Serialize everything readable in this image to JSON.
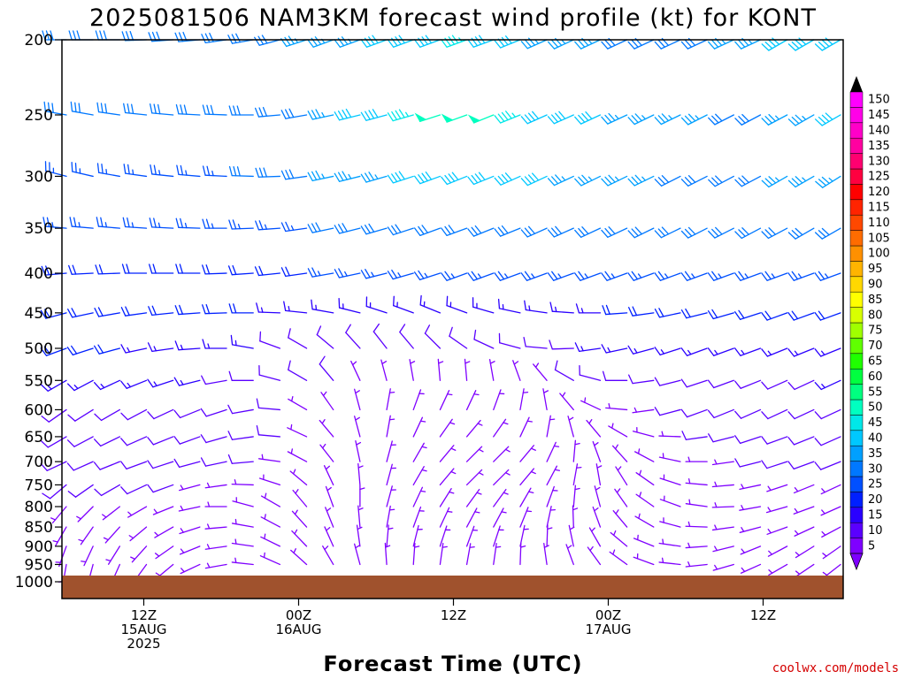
{
  "chart_data": {
    "type": "wind-barb time-height profile",
    "title": "2025081506 NAM3KM forecast wind profile (kt) for KONT",
    "xlabel": "Forecast Time (UTC)",
    "credit": "coolwx.com/models",
    "pressure_levels_hpa": [
      200,
      250,
      300,
      350,
      400,
      450,
      500,
      550,
      600,
      650,
      700,
      750,
      800,
      850,
      900,
      950,
      1000
    ],
    "y_tick_labels": [
      "200",
      "250",
      "300",
      "350",
      "400",
      "450",
      "500",
      "550",
      "600",
      "650",
      "700",
      "750",
      "800",
      "850",
      "900",
      "950",
      "1000"
    ],
    "ylim": [
      200,
      1000
    ],
    "y_scale": "log-pressure",
    "x_range_hours": [
      0,
      60
    ],
    "x_ticks": [
      {
        "hour": 6,
        "lines": [
          "12Z",
          "15AUG",
          "2025"
        ]
      },
      {
        "hour": 18,
        "lines": [
          "00Z",
          "16AUG"
        ]
      },
      {
        "hour": 30,
        "lines": [
          "12Z"
        ]
      },
      {
        "hour": 42,
        "lines": [
          "00Z",
          "17AUG"
        ]
      },
      {
        "hour": 54,
        "lines": [
          "12Z"
        ]
      }
    ],
    "colorbar": {
      "unit": "kt",
      "levels": [
        "5",
        "10",
        "15",
        "20",
        "25",
        "30",
        "35",
        "40",
        "45",
        "50",
        "55",
        "60",
        "65",
        "70",
        "75",
        "80",
        "85",
        "90",
        "95",
        "100",
        "105",
        "110",
        "115",
        "120",
        "125",
        "130",
        "135",
        "140",
        "145",
        "150"
      ],
      "colors": [
        "#7f00ff",
        "#5a00ff",
        "#2a00ff",
        "#0020ff",
        "#0050ff",
        "#0078ff",
        "#00a0ff",
        "#00c8ff",
        "#00e8e8",
        "#00ffc0",
        "#00ff80",
        "#00ff40",
        "#20ff00",
        "#60ff00",
        "#a0ff00",
        "#d8ff00",
        "#ffff00",
        "#ffd800",
        "#ffb400",
        "#ff9000",
        "#ff6c00",
        "#ff4800",
        "#ff2400",
        "#ff0000",
        "#ff0040",
        "#ff0070",
        "#ff00a0",
        "#ff00c8",
        "#ff00e8",
        "#ff00ff"
      ]
    },
    "surface_color": "#a0522d",
    "series": [
      {
        "level": 200,
        "speed_kt": [
          30,
          30,
          30,
          30,
          30,
          30,
          30,
          30,
          32,
          35,
          35,
          35,
          38,
          40,
          42,
          45,
          40,
          38,
          36,
          35,
          34,
          32,
          32,
          32,
          32,
          34,
          36,
          38,
          40,
          40
        ],
        "dir_deg": [
          270,
          270,
          270,
          268,
          266,
          265,
          262,
          260,
          255,
          252,
          250,
          250,
          250,
          250,
          250,
          250,
          250,
          248,
          246,
          245,
          245,
          245,
          245,
          245,
          245,
          245,
          245,
          240,
          240,
          240
        ]
      },
      {
        "level": 250,
        "speed_kt": [
          28,
          28,
          28,
          28,
          28,
          28,
          28,
          28,
          30,
          32,
          35,
          38,
          42,
          45,
          48,
          50,
          48,
          45,
          42,
          40,
          38,
          36,
          35,
          34,
          33,
          32,
          32,
          34,
          36,
          38
        ],
        "dir_deg": [
          280,
          280,
          278,
          276,
          275,
          273,
          272,
          270,
          265,
          260,
          258,
          256,
          255,
          254,
          252,
          250,
          248,
          248,
          246,
          246,
          245,
          245,
          244,
          244,
          243,
          243,
          242,
          242,
          240,
          240
        ]
      },
      {
        "level": 300,
        "speed_kt": [
          25,
          26,
          26,
          26,
          27,
          27,
          27,
          28,
          30,
          32,
          33,
          34,
          36,
          38,
          40,
          42,
          42,
          40,
          38,
          36,
          35,
          34,
          33,
          32,
          32,
          32,
          32,
          33,
          34,
          35
        ],
        "dir_deg": [
          285,
          283,
          280,
          278,
          276,
          275,
          273,
          272,
          268,
          262,
          258,
          256,
          254,
          252,
          250,
          248,
          248,
          246,
          245,
          245,
          244,
          244,
          244,
          243,
          243,
          242,
          242,
          240,
          240,
          238
        ]
      },
      {
        "level": 350,
        "speed_kt": [
          24,
          24,
          24,
          24,
          24,
          25,
          25,
          25,
          26,
          27,
          28,
          29,
          30,
          31,
          31,
          32,
          32,
          32,
          31,
          30,
          30,
          29,
          29,
          28,
          28,
          28,
          28,
          29,
          29,
          30
        ],
        "dir_deg": [
          275,
          275,
          275,
          274,
          273,
          272,
          270,
          268,
          266,
          262,
          258,
          256,
          254,
          252,
          250,
          250,
          248,
          248,
          246,
          246,
          245,
          245,
          244,
          244,
          243,
          243,
          242,
          242,
          240,
          240
        ]
      },
      {
        "level": 400,
        "speed_kt": [
          22,
          22,
          22,
          22,
          22,
          22,
          22,
          22,
          22,
          22,
          23,
          23,
          23,
          24,
          24,
          24,
          24,
          24,
          24,
          24,
          24,
          24,
          24,
          24,
          24,
          24,
          24,
          24,
          24,
          24
        ],
        "dir_deg": [
          265,
          267,
          268,
          270,
          270,
          270,
          268,
          266,
          264,
          262,
          260,
          258,
          256,
          254,
          252,
          250,
          250,
          250,
          250,
          250,
          250,
          250,
          250,
          250,
          250,
          250,
          250,
          250,
          250,
          250
        ]
      },
      {
        "level": 450,
        "speed_kt": [
          20,
          20,
          20,
          20,
          20,
          19,
          18,
          18,
          17,
          16,
          16,
          15,
          15,
          15,
          15,
          15,
          16,
          16,
          16,
          17,
          17,
          18,
          18,
          18,
          19,
          19,
          20,
          20,
          20,
          20
        ],
        "dir_deg": [
          255,
          258,
          260,
          262,
          264,
          266,
          268,
          270,
          272,
          276,
          280,
          284,
          288,
          290,
          292,
          290,
          286,
          282,
          278,
          274,
          270,
          266,
          262,
          258,
          256,
          254,
          252,
          250,
          250,
          250
        ]
      },
      {
        "level": 500,
        "speed_kt": [
          18,
          18,
          18,
          17,
          16,
          15,
          14,
          13,
          12,
          11,
          10,
          10,
          10,
          10,
          10,
          10,
          11,
          11,
          12,
          12,
          13,
          13,
          14,
          14,
          15,
          15,
          16,
          16,
          16,
          16
        ],
        "dir_deg": [
          250,
          252,
          255,
          258,
          262,
          266,
          270,
          280,
          290,
          300,
          310,
          318,
          322,
          320,
          315,
          305,
          295,
          285,
          275,
          268,
          262,
          258,
          255,
          252,
          250,
          250,
          250,
          248,
          248,
          248
        ]
      },
      {
        "level": 550,
        "speed_kt": [
          15,
          15,
          15,
          14,
          14,
          13,
          12,
          11,
          10,
          9,
          8,
          7,
          6,
          6,
          6,
          6,
          6,
          7,
          7,
          8,
          8,
          9,
          9,
          10,
          10,
          11,
          11,
          12,
          12,
          13
        ],
        "dir_deg": [
          240,
          242,
          245,
          248,
          252,
          256,
          260,
          270,
          285,
          300,
          320,
          335,
          345,
          350,
          355,
          355,
          350,
          340,
          320,
          300,
          285,
          270,
          262,
          256,
          252,
          250,
          248,
          246,
          245,
          245
        ]
      },
      {
        "level": 600,
        "speed_kt": [
          12,
          12,
          12,
          12,
          12,
          11,
          10,
          9,
          8,
          7,
          6,
          6,
          5,
          5,
          5,
          5,
          5,
          5,
          5,
          6,
          6,
          7,
          7,
          8,
          8,
          9,
          9,
          10,
          10,
          10
        ],
        "dir_deg": [
          235,
          238,
          240,
          242,
          245,
          248,
          252,
          260,
          275,
          300,
          325,
          345,
          10,
          20,
          25,
          25,
          20,
          10,
          350,
          320,
          295,
          275,
          262,
          255,
          250,
          248,
          246,
          245,
          245,
          245
        ]
      },
      {
        "level": 650,
        "speed_kt": [
          12,
          12,
          12,
          12,
          11,
          11,
          10,
          9,
          8,
          7,
          6,
          5,
          5,
          5,
          5,
          5,
          5,
          5,
          5,
          5,
          6,
          6,
          7,
          7,
          8,
          8,
          9,
          9,
          10,
          10
        ],
        "dir_deg": [
          240,
          242,
          244,
          246,
          248,
          250,
          254,
          262,
          275,
          295,
          320,
          345,
          10,
          25,
          35,
          40,
          35,
          25,
          10,
          345,
          320,
          300,
          285,
          272,
          262,
          256,
          252,
          250,
          248,
          246
        ]
      },
      {
        "level": 700,
        "speed_kt": [
          10,
          10,
          10,
          10,
          10,
          10,
          9,
          8,
          7,
          6,
          5,
          5,
          5,
          5,
          5,
          5,
          5,
          5,
          5,
          5,
          5,
          5,
          6,
          6,
          7,
          7,
          8,
          8,
          8,
          8
        ],
        "dir_deg": [
          245,
          246,
          248,
          250,
          252,
          255,
          258,
          265,
          278,
          298,
          322,
          348,
          15,
          30,
          40,
          45,
          45,
          40,
          25,
          5,
          340,
          318,
          298,
          282,
          270,
          262,
          256,
          252,
          250,
          248
        ]
      },
      {
        "level": 750,
        "speed_kt": [
          8,
          8,
          8,
          8,
          8,
          7,
          7,
          6,
          6,
          5,
          5,
          5,
          5,
          5,
          5,
          5,
          5,
          5,
          5,
          5,
          5,
          5,
          5,
          5,
          6,
          6,
          6,
          7,
          7,
          7
        ],
        "dir_deg": [
          230,
          235,
          240,
          245,
          250,
          255,
          262,
          272,
          288,
          310,
          335,
          355,
          15,
          30,
          40,
          45,
          45,
          40,
          28,
          10,
          350,
          328,
          305,
          288,
          275,
          265,
          258,
          252,
          248,
          245
        ]
      },
      {
        "level": 800,
        "speed_kt": [
          6,
          6,
          6,
          6,
          6,
          6,
          5,
          5,
          5,
          5,
          5,
          5,
          5,
          5,
          5,
          5,
          5,
          5,
          5,
          5,
          5,
          5,
          5,
          5,
          5,
          5,
          5,
          5,
          6,
          6
        ],
        "dir_deg": [
          220,
          225,
          232,
          240,
          248,
          258,
          270,
          285,
          300,
          320,
          340,
          0,
          15,
          25,
          32,
          36,
          36,
          30,
          20,
          5,
          345,
          325,
          305,
          290,
          278,
          268,
          260,
          254,
          250,
          246
        ]
      },
      {
        "level": 850,
        "speed_kt": [
          5,
          5,
          5,
          5,
          5,
          5,
          5,
          5,
          5,
          5,
          5,
          5,
          5,
          5,
          5,
          5,
          5,
          5,
          5,
          5,
          5,
          5,
          5,
          5,
          5,
          5,
          5,
          5,
          5,
          5
        ],
        "dir_deg": [
          210,
          215,
          222,
          230,
          240,
          252,
          265,
          280,
          298,
          318,
          338,
          355,
          10,
          20,
          25,
          28,
          28,
          22,
          12,
          358,
          340,
          320,
          300,
          285,
          272,
          262,
          255,
          250,
          245,
          242
        ]
      },
      {
        "level": 900,
        "speed_kt": [
          5,
          5,
          5,
          5,
          5,
          5,
          5,
          5,
          5,
          5,
          5,
          5,
          5,
          5,
          5,
          5,
          5,
          5,
          5,
          5,
          5,
          5,
          5,
          5,
          5,
          5,
          5,
          5,
          5,
          5
        ],
        "dir_deg": [
          200,
          205,
          212,
          222,
          235,
          248,
          262,
          278,
          296,
          316,
          336,
          352,
          5,
          14,
          18,
          20,
          18,
          12,
          2,
          348,
          330,
          310,
          292,
          278,
          266,
          256,
          248,
          242,
          238,
          235
        ]
      },
      {
        "level": 950,
        "speed_kt": [
          5,
          5,
          5,
          5,
          5,
          5,
          5,
          5,
          5,
          5,
          5,
          5,
          5,
          5,
          5,
          5,
          5,
          5,
          5,
          5,
          5,
          5,
          5,
          5,
          5,
          5,
          5,
          5,
          5,
          5
        ],
        "dir_deg": [
          190,
          195,
          204,
          216,
          230,
          245,
          260,
          276,
          294,
          312,
          330,
          345,
          356,
          4,
          8,
          10,
          8,
          2,
          352,
          340,
          324,
          306,
          290,
          276,
          264,
          254,
          246,
          240,
          236,
          232
        ]
      }
    ]
  }
}
